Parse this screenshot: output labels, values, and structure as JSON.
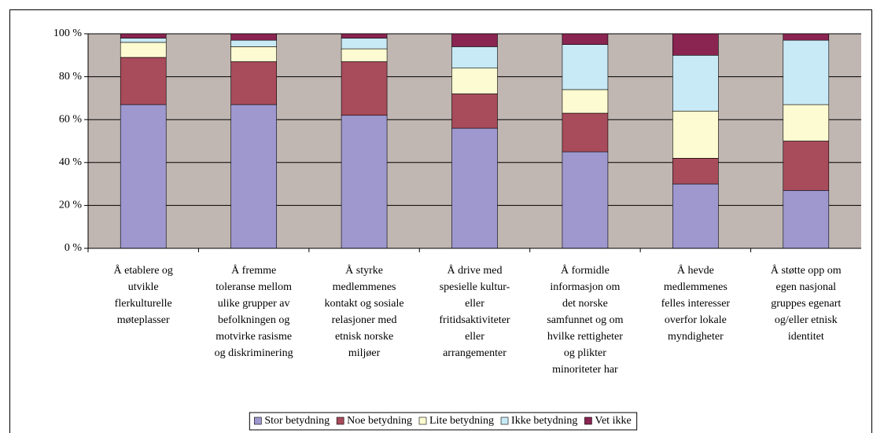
{
  "chart_data": {
    "type": "stacked_bar",
    "categories": [
      [
        "Å etablere og",
        "utvikle",
        "flerkulturelle",
        "møteplasser"
      ],
      [
        "Å fremme",
        "toleranse mellom",
        "ulike grupper av",
        "befolkningen og",
        "motvirke rasisme",
        "og diskriminering"
      ],
      [
        "Å styrke",
        "medlemmenes",
        "kontakt og sosiale",
        "relasjoner med",
        "etnisk norske",
        "miljøer"
      ],
      [
        "Å drive med",
        "spesielle kultur-",
        "eller",
        "fritidsaktiviteter",
        "eller",
        "arrangementer"
      ],
      [
        "Å formidle",
        "informasjon om",
        "det norske",
        "samfunnet og om",
        "hvilke rettigheter",
        "og plikter",
        "minoriteter har"
      ],
      [
        "Å hevde",
        "medlemmenes",
        "felles interesser",
        "overfor lokale",
        "myndigheter"
      ],
      [
        "Å støtte opp om",
        "egen nasjonal",
        "gruppes egenart",
        "og/eller etnisk",
        "identitet"
      ]
    ],
    "series": [
      {
        "name": "Stor betydning",
        "color": "#9e98cf",
        "values": [
          67,
          67,
          62,
          56,
          45,
          30,
          27
        ]
      },
      {
        "name": "Noe betydning",
        "color": "#a84b5b",
        "values": [
          22,
          20,
          25,
          16,
          18,
          12,
          23
        ]
      },
      {
        "name": "Lite betydning",
        "color": "#fdfbd2",
        "values": [
          7,
          7,
          6,
          12,
          11,
          22,
          17
        ]
      },
      {
        "name": "Ikke betydning",
        "color": "#c8eaf6",
        "values": [
          2,
          3,
          5,
          10,
          21,
          26,
          30
        ]
      },
      {
        "name": "Vet ikke",
        "color": "#8a2451",
        "values": [
          2,
          3,
          2,
          6,
          5,
          10,
          3
        ]
      }
    ],
    "ylim": [
      0,
      100
    ],
    "yticks": [
      {
        "value": 0,
        "label": "0 %"
      },
      {
        "value": 20,
        "label": "20 %"
      },
      {
        "value": 40,
        "label": "40 %"
      },
      {
        "value": 60,
        "label": "60 %"
      },
      {
        "value": 80,
        "label": "80 %"
      },
      {
        "value": 100,
        "label": "100 %"
      }
    ],
    "grid": true,
    "legend": "bottom"
  }
}
